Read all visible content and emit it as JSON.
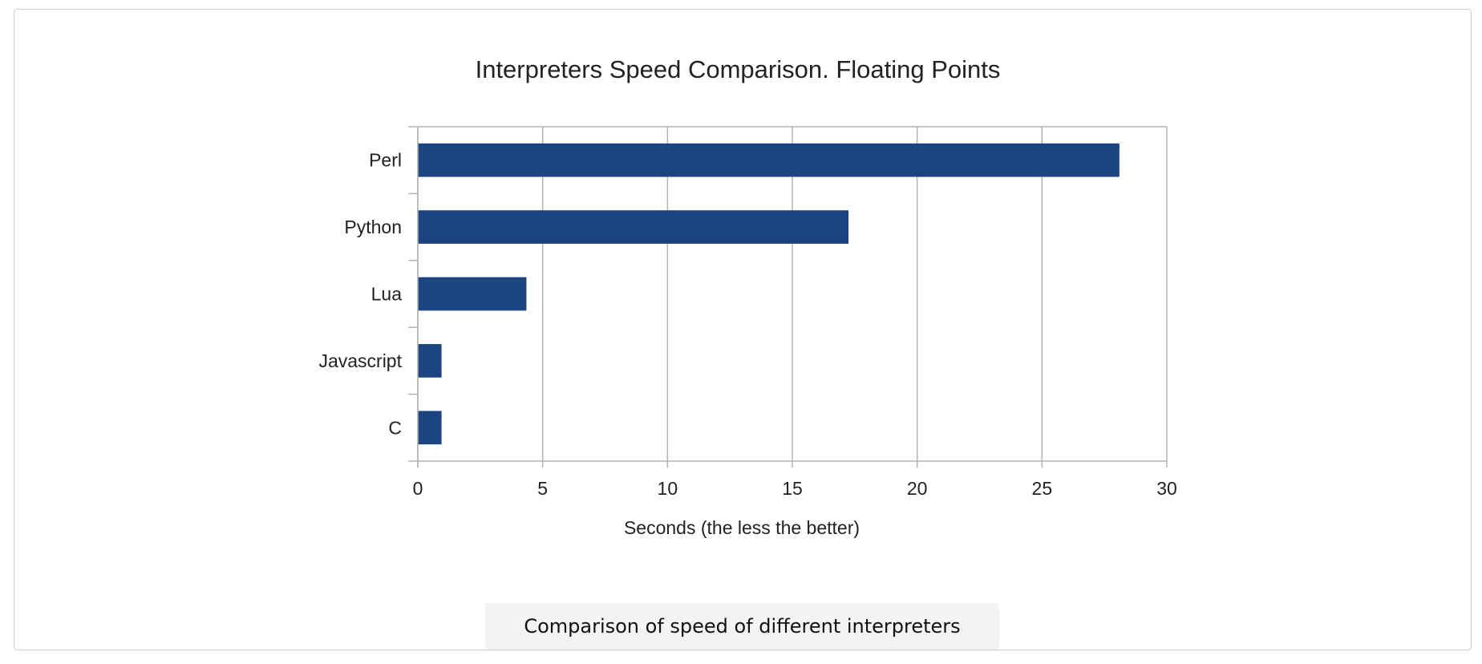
{
  "chart_data": {
    "type": "bar",
    "orientation": "horizontal",
    "title": "Interpreters Speed Comparison. Floating Points",
    "xlabel": "Seconds (the less the better)",
    "ylabel": "",
    "categories": [
      "Perl",
      "Python",
      "Lua",
      "Javascript",
      "C"
    ],
    "values": [
      28.1,
      17.25,
      4.35,
      0.95,
      0.95
    ],
    "xlim": [
      0,
      30
    ],
    "xticks": [
      0,
      5,
      10,
      15,
      20,
      25,
      30
    ],
    "grid": true,
    "bar_color": "#1b4480",
    "grid_color": "#b3b3b3"
  },
  "caption": "Comparison of speed of different interpreters"
}
